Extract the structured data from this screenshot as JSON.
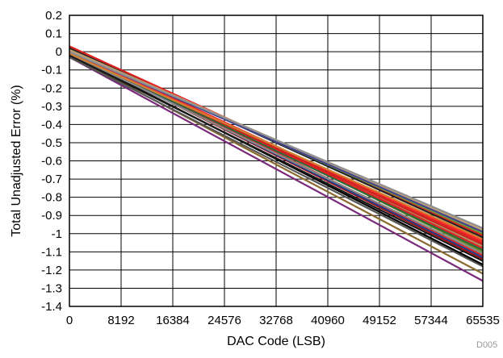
{
  "chart_data": {
    "type": "line",
    "title": "",
    "xlabel": "DAC Code (LSB)",
    "ylabel": "Total Unadjusted Error (%)",
    "xlim": [
      0,
      65535
    ],
    "ylim": [
      -1.4,
      0.2
    ],
    "xticks": [
      0,
      8192,
      16384,
      24576,
      32768,
      40960,
      49152,
      57344,
      65535
    ],
    "xtick_labels": [
      "0",
      "8192",
      "16384",
      "24576",
      "32768",
      "40960",
      "49152",
      "57344",
      "65535"
    ],
    "yticks": [
      0.2,
      0.1,
      0,
      -0.1,
      -0.2,
      -0.3,
      -0.4,
      -0.5,
      -0.6,
      -0.7,
      -0.8,
      -0.9,
      -1,
      -1.1,
      -1.2,
      -1.3,
      -1.4
    ],
    "ytick_labels": [
      "0.2",
      "0.1",
      "0",
      "-0.1",
      "-0.2",
      "-0.3",
      "-0.4",
      "-0.5",
      "-0.6",
      "-0.7",
      "-0.8",
      "-0.9",
      "-1",
      "-1.1",
      "-1.2",
      "-1.3",
      "-1.4"
    ],
    "grid": true,
    "legend": false,
    "watermark": "D005",
    "series": [
      {
        "x": [
          0,
          65535
        ],
        "y": [
          -0.03,
          -1.26
        ],
        "color": "#7a2a7a"
      },
      {
        "x": [
          0,
          65535
        ],
        "y": [
          -0.02,
          -1.22
        ],
        "color": "#8b6b2e"
      },
      {
        "x": [
          0,
          65535
        ],
        "y": [
          -0.03,
          -1.18
        ],
        "color": "#555555"
      },
      {
        "x": [
          0,
          65535
        ],
        "y": [
          -0.01,
          -1.17
        ],
        "color": "#000000"
      },
      {
        "x": [
          0,
          65535
        ],
        "y": [
          -0.02,
          -1.15
        ],
        "color": "#1a1a1a"
      },
      {
        "x": [
          0,
          65535
        ],
        "y": [
          0.0,
          -1.14
        ],
        "color": "#a01010"
      },
      {
        "x": [
          0,
          65535
        ],
        "y": [
          0.0,
          -1.13
        ],
        "color": "#1f3f8f"
      },
      {
        "x": [
          0,
          65535
        ],
        "y": [
          0.01,
          -1.12
        ],
        "color": "#e02020"
      },
      {
        "x": [
          0,
          65535
        ],
        "y": [
          -0.01,
          -1.11
        ],
        "color": "#888888"
      },
      {
        "x": [
          0,
          65535
        ],
        "y": [
          0.02,
          -1.1
        ],
        "color": "#6a8a2a"
      },
      {
        "x": [
          0,
          65535
        ],
        "y": [
          0.0,
          -1.09
        ],
        "color": "#2a6a3a"
      },
      {
        "x": [
          0,
          65535
        ],
        "y": [
          0.01,
          -1.08
        ],
        "color": "#e02020"
      },
      {
        "x": [
          0,
          65535
        ],
        "y": [
          0.02,
          -1.07
        ],
        "color": "#b09060"
      },
      {
        "x": [
          0,
          65535
        ],
        "y": [
          0.0,
          -1.06
        ],
        "color": "#cc2222"
      },
      {
        "x": [
          0,
          65535
        ],
        "y": [
          0.01,
          -1.05
        ],
        "color": "#e02020"
      },
      {
        "x": [
          0,
          65535
        ],
        "y": [
          0.0,
          -1.04
        ],
        "color": "#ff3030"
      },
      {
        "x": [
          0,
          65535
        ],
        "y": [
          -0.01,
          -1.03
        ],
        "color": "#d08030"
      },
      {
        "x": [
          0,
          65535
        ],
        "y": [
          0.02,
          -1.02
        ],
        "color": "#222222"
      },
      {
        "x": [
          0,
          65535
        ],
        "y": [
          0.03,
          -1.01
        ],
        "color": "#e02020"
      },
      {
        "x": [
          0,
          65535
        ],
        "y": [
          0.01,
          -1.0
        ],
        "color": "#6a9a3a"
      },
      {
        "x": [
          0,
          65535
        ],
        "y": [
          0.0,
          -0.99
        ],
        "color": "#404090"
      },
      {
        "x": [
          0,
          65535
        ],
        "y": [
          0.01,
          -0.98
        ],
        "color": "#c0a070"
      },
      {
        "x": [
          0,
          65535
        ],
        "y": [
          0.0,
          -0.97
        ],
        "color": "#909090"
      }
    ]
  }
}
